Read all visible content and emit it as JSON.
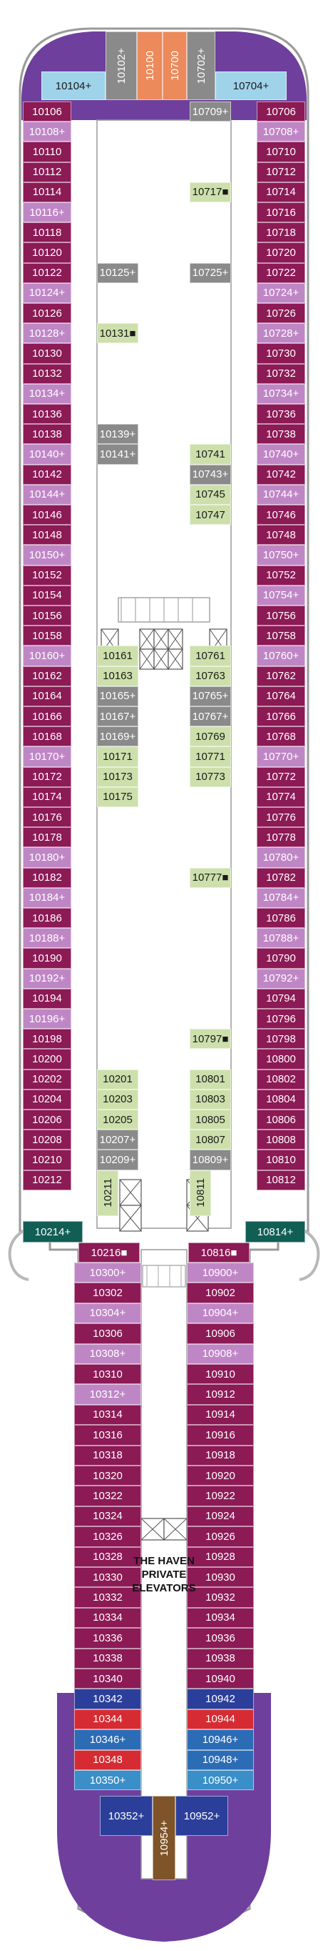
{
  "colors": {
    "inside": "#8b1a55",
    "balcony": "#bf86c5",
    "club": "#cde0ac",
    "spa": "#8a8a8a",
    "suite_lightblue": "#9fd3ea",
    "suite_teal": "#115e55",
    "haven_blue": "#2b6cb5",
    "haven_red": "#d62b32",
    "haven_navy": "#2b3f9a",
    "orange": "#ec8a5b",
    "brown": "#7e5428",
    "aqua": "#3a8fc8",
    "purple_end": "#6f3f9e",
    "hull": "#ffffff"
  },
  "labels": {
    "haven": "THE HAVEN PRIVATE ELEVATORS"
  },
  "top": [
    {
      "label": "10104+",
      "c": "suite_lightblue"
    },
    {
      "label": "10102+",
      "c": "spa"
    },
    {
      "label": "10100",
      "c": "orange"
    },
    {
      "label": "10700",
      "c": "orange"
    },
    {
      "label": "10702+",
      "c": "spa"
    },
    {
      "label": "10704+",
      "c": "suite_lightblue"
    }
  ],
  "port_aft": [
    [
      "10106",
      "inside"
    ],
    [
      "10108+",
      "balcony"
    ],
    [
      "10110",
      "inside"
    ],
    [
      "10112",
      "inside"
    ],
    [
      "10114",
      "inside"
    ],
    [
      "10116+",
      "balcony"
    ],
    [
      "10118",
      "inside"
    ],
    [
      "10120",
      "inside"
    ],
    [
      "10122",
      "inside"
    ],
    [
      "10124+",
      "balcony"
    ],
    [
      "10126",
      "inside"
    ],
    [
      "10128+",
      "balcony"
    ],
    [
      "10130",
      "inside"
    ],
    [
      "10132",
      "inside"
    ],
    [
      "10134+",
      "balcony"
    ],
    [
      "10136",
      "inside"
    ],
    [
      "10138",
      "inside"
    ],
    [
      "10140+",
      "balcony"
    ],
    [
      "10142",
      "inside"
    ],
    [
      "10144+",
      "balcony"
    ],
    [
      "10146",
      "inside"
    ],
    [
      "10148",
      "inside"
    ],
    [
      "10150+",
      "balcony"
    ],
    [
      "10152",
      "inside"
    ],
    [
      "10154",
      "inside"
    ],
    [
      "10156",
      "inside"
    ],
    [
      "10158",
      "inside"
    ],
    [
      "10160+",
      "balcony"
    ],
    [
      "10162",
      "inside"
    ],
    [
      "10164",
      "inside"
    ],
    [
      "10166",
      "inside"
    ],
    [
      "10168",
      "inside"
    ],
    [
      "10170+",
      "balcony"
    ],
    [
      "10172",
      "inside"
    ],
    [
      "10174",
      "inside"
    ],
    [
      "10176",
      "inside"
    ],
    [
      "10178",
      "inside"
    ],
    [
      "10180+",
      "balcony"
    ],
    [
      "10182",
      "inside"
    ],
    [
      "10184+",
      "balcony"
    ],
    [
      "10186",
      "inside"
    ],
    [
      "10188+",
      "balcony"
    ],
    [
      "10190",
      "inside"
    ],
    [
      "10192+",
      "balcony"
    ],
    [
      "10194",
      "inside"
    ],
    [
      "10196+",
      "balcony"
    ],
    [
      "10198",
      "inside"
    ],
    [
      "10200",
      "inside"
    ],
    [
      "10202",
      "inside"
    ],
    [
      "10204",
      "inside"
    ],
    [
      "10206",
      "inside"
    ],
    [
      "10208",
      "inside"
    ],
    [
      "10210",
      "inside"
    ],
    [
      "10212",
      "inside"
    ]
  ],
  "star_aft": [
    [
      "10706",
      "inside"
    ],
    [
      "10708+",
      "balcony"
    ],
    [
      "10710",
      "inside"
    ],
    [
      "10712",
      "inside"
    ],
    [
      "10714",
      "inside"
    ],
    [
      "10716",
      "inside"
    ],
    [
      "10718",
      "inside"
    ],
    [
      "10720",
      "inside"
    ],
    [
      "10722",
      "inside"
    ],
    [
      "10724+",
      "balcony"
    ],
    [
      "10726",
      "inside"
    ],
    [
      "10728+",
      "balcony"
    ],
    [
      "10730",
      "inside"
    ],
    [
      "10732",
      "inside"
    ],
    [
      "10734+",
      "balcony"
    ],
    [
      "10736",
      "inside"
    ],
    [
      "10738",
      "inside"
    ],
    [
      "10740+",
      "balcony"
    ],
    [
      "10742",
      "inside"
    ],
    [
      "10744+",
      "balcony"
    ],
    [
      "10746",
      "inside"
    ],
    [
      "10748",
      "inside"
    ],
    [
      "10750+",
      "balcony"
    ],
    [
      "10752",
      "inside"
    ],
    [
      "10754+",
      "balcony"
    ],
    [
      "10756",
      "inside"
    ],
    [
      "10758",
      "inside"
    ],
    [
      "10760+",
      "balcony"
    ],
    [
      "10762",
      "inside"
    ],
    [
      "10764",
      "inside"
    ],
    [
      "10766",
      "inside"
    ],
    [
      "10768",
      "inside"
    ],
    [
      "10770+",
      "balcony"
    ],
    [
      "10772",
      "inside"
    ],
    [
      "10774",
      "inside"
    ],
    [
      "10776",
      "inside"
    ],
    [
      "10778",
      "inside"
    ],
    [
      "10780+",
      "balcony"
    ],
    [
      "10782",
      "inside"
    ],
    [
      "10784+",
      "balcony"
    ],
    [
      "10786",
      "inside"
    ],
    [
      "10788+",
      "balcony"
    ],
    [
      "10790",
      "inside"
    ],
    [
      "10792+",
      "balcony"
    ],
    [
      "10794",
      "inside"
    ],
    [
      "10796",
      "inside"
    ],
    [
      "10798",
      "inside"
    ],
    [
      "10800",
      "inside"
    ],
    [
      "10802",
      "inside"
    ],
    [
      "10804",
      "inside"
    ],
    [
      "10806",
      "inside"
    ],
    [
      "10808",
      "inside"
    ],
    [
      "10810",
      "inside"
    ],
    [
      "10812",
      "inside"
    ]
  ],
  "inner_port": [
    {
      "label": "10125+",
      "row": 8,
      "c": "spa"
    },
    {
      "label": "10131■",
      "row": 11,
      "c": "club"
    },
    {
      "label": "10139+",
      "row": 16,
      "c": "spa"
    },
    {
      "label": "10141+",
      "row": 17,
      "c": "spa"
    },
    {
      "label": "10161",
      "row": 27,
      "c": "club"
    },
    {
      "label": "10163",
      "row": 28,
      "c": "club"
    },
    {
      "label": "10165+",
      "row": 29,
      "c": "spa"
    },
    {
      "label": "10167+",
      "row": 30,
      "c": "spa"
    },
    {
      "label": "10169+",
      "row": 31,
      "c": "spa"
    },
    {
      "label": "10171",
      "row": 32,
      "c": "club"
    },
    {
      "label": "10173",
      "row": 33,
      "c": "club"
    },
    {
      "label": "10175",
      "row": 34,
      "c": "club"
    },
    {
      "label": "10201",
      "row": 48,
      "c": "club"
    },
    {
      "label": "10203",
      "row": 49,
      "c": "club"
    },
    {
      "label": "10205",
      "row": 50,
      "c": "club"
    },
    {
      "label": "10207+",
      "row": 51,
      "c": "spa"
    },
    {
      "label": "10209+",
      "row": 52,
      "c": "spa"
    }
  ],
  "inner_star": [
    {
      "label": "10709+",
      "row": 0,
      "c": "spa"
    },
    {
      "label": "10717■",
      "row": 4,
      "c": "club"
    },
    {
      "label": "10725+",
      "row": 8,
      "c": "spa"
    },
    {
      "label": "10741",
      "row": 17,
      "c": "club"
    },
    {
      "label": "10743+",
      "row": 18,
      "c": "spa"
    },
    {
      "label": "10745",
      "row": 19,
      "c": "club"
    },
    {
      "label": "10747",
      "row": 20,
      "c": "club"
    },
    {
      "label": "10761",
      "row": 27,
      "c": "club"
    },
    {
      "label": "10763",
      "row": 28,
      "c": "club"
    },
    {
      "label": "10765+",
      "row": 29,
      "c": "spa"
    },
    {
      "label": "10767+",
      "row": 30,
      "c": "spa"
    },
    {
      "label": "10769",
      "row": 31,
      "c": "club"
    },
    {
      "label": "10771",
      "row": 32,
      "c": "club"
    },
    {
      "label": "10773",
      "row": 33,
      "c": "club"
    },
    {
      "label": "10777■",
      "row": 38,
      "c": "club"
    },
    {
      "label": "10797■",
      "row": 46,
      "c": "club"
    },
    {
      "label": "10801",
      "row": 48,
      "c": "club"
    },
    {
      "label": "10803",
      "row": 49,
      "c": "club"
    },
    {
      "label": "10805",
      "row": 50,
      "c": "club"
    },
    {
      "label": "10807",
      "row": 51,
      "c": "club"
    },
    {
      "label": "10809+",
      "row": 52,
      "c": "spa"
    }
  ],
  "vertical": [
    {
      "label": "10211",
      "side": "port",
      "c": "club"
    },
    {
      "label": "10811",
      "side": "star",
      "c": "club"
    }
  ],
  "mid": [
    {
      "label": "10214+",
      "side": "port",
      "c": "suite_teal"
    },
    {
      "label": "10216■",
      "side": "pi",
      "c": "inside"
    },
    {
      "label": "10816■",
      "side": "si",
      "c": "inside"
    },
    {
      "label": "10814+",
      "side": "star",
      "c": "suite_teal"
    }
  ],
  "port_fwd": [
    [
      "10300+",
      "balcony"
    ],
    [
      "10302",
      "inside"
    ],
    [
      "10304+",
      "balcony"
    ],
    [
      "10306",
      "inside"
    ],
    [
      "10308+",
      "balcony"
    ],
    [
      "10310",
      "inside"
    ],
    [
      "10312+",
      "balcony"
    ],
    [
      "10314",
      "inside"
    ],
    [
      "10316",
      "inside"
    ],
    [
      "10318",
      "inside"
    ],
    [
      "10320",
      "inside"
    ],
    [
      "10322",
      "inside"
    ],
    [
      "10324",
      "inside"
    ],
    [
      "10326",
      "inside"
    ],
    [
      "10328",
      "inside"
    ],
    [
      "10330",
      "inside"
    ],
    [
      "10332",
      "inside"
    ],
    [
      "10334",
      "inside"
    ],
    [
      "10336",
      "inside"
    ],
    [
      "10338",
      "inside"
    ],
    [
      "10340",
      "inside"
    ],
    [
      "10342",
      "haven_navy"
    ],
    [
      "10344",
      "haven_red"
    ],
    [
      "10346+",
      "haven_blue"
    ],
    [
      "10348",
      "haven_red"
    ],
    [
      "10350+",
      "aqua"
    ]
  ],
  "star_fwd": [
    [
      "10900+",
      "balcony"
    ],
    [
      "10902",
      "inside"
    ],
    [
      "10904+",
      "balcony"
    ],
    [
      "10906",
      "inside"
    ],
    [
      "10908+",
      "balcony"
    ],
    [
      "10910",
      "inside"
    ],
    [
      "10912",
      "inside"
    ],
    [
      "10914",
      "inside"
    ],
    [
      "10916",
      "inside"
    ],
    [
      "10918",
      "inside"
    ],
    [
      "10920",
      "inside"
    ],
    [
      "10922",
      "inside"
    ],
    [
      "10924",
      "inside"
    ],
    [
      "10926",
      "inside"
    ],
    [
      "10928",
      "inside"
    ],
    [
      "10930",
      "inside"
    ],
    [
      "10932",
      "inside"
    ],
    [
      "10934",
      "inside"
    ],
    [
      "10936",
      "inside"
    ],
    [
      "10938",
      "inside"
    ],
    [
      "10940",
      "inside"
    ],
    [
      "10942",
      "haven_navy"
    ],
    [
      "10944",
      "haven_red"
    ],
    [
      "10946+",
      "haven_blue"
    ],
    [
      "10948+",
      "haven_blue"
    ],
    [
      "10950+",
      "aqua"
    ]
  ],
  "bow": [
    {
      "label": "10352+",
      "c": "haven_navy"
    },
    {
      "label": "10954+",
      "c": "brown"
    },
    {
      "label": "10952+",
      "c": "haven_navy"
    }
  ]
}
